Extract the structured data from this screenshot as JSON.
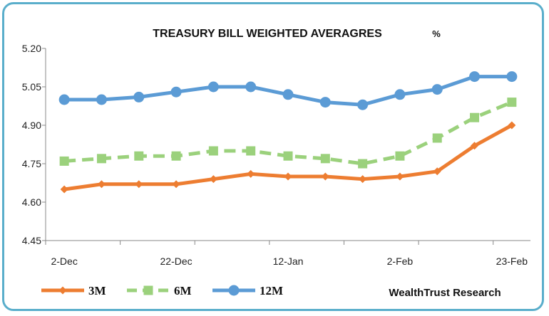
{
  "chart_data": {
    "type": "line",
    "title": "TREASURY BILL WEIGHTED AVERAGRES",
    "unit_label": "%",
    "x_tick_labels": [
      "2-Dec",
      "22-Dec",
      "12-Jan",
      "2-Feb",
      "23-Feb"
    ],
    "yticks": [
      "5.20",
      "5.05",
      "4.90",
      "4.75",
      "4.60",
      "4.45"
    ],
    "ylim": [
      4.45,
      5.2
    ],
    "grid": false,
    "legend_position": "bottom",
    "source_note": "WealthTrust Research",
    "series": [
      {
        "name": "3M",
        "color": "#ed7d31",
        "marker": "diamond",
        "dash": "solid",
        "values": [
          4.65,
          4.67,
          4.67,
          4.67,
          4.69,
          4.71,
          4.7,
          4.7,
          4.69,
          4.7,
          4.72,
          4.82,
          4.9
        ]
      },
      {
        "name": "6M",
        "color": "#9bd17c",
        "marker": "square",
        "dash": "dashed",
        "values": [
          4.76,
          4.77,
          4.78,
          4.78,
          4.8,
          4.8,
          4.78,
          4.77,
          4.75,
          4.78,
          4.85,
          4.93,
          4.99
        ]
      },
      {
        "name": "12M",
        "color": "#5b9bd5",
        "marker": "circle",
        "dash": "solid",
        "values": [
          5.0,
          5.0,
          5.01,
          5.03,
          5.05,
          5.05,
          5.02,
          4.99,
          4.98,
          5.02,
          5.04,
          5.09,
          5.09
        ]
      }
    ]
  }
}
